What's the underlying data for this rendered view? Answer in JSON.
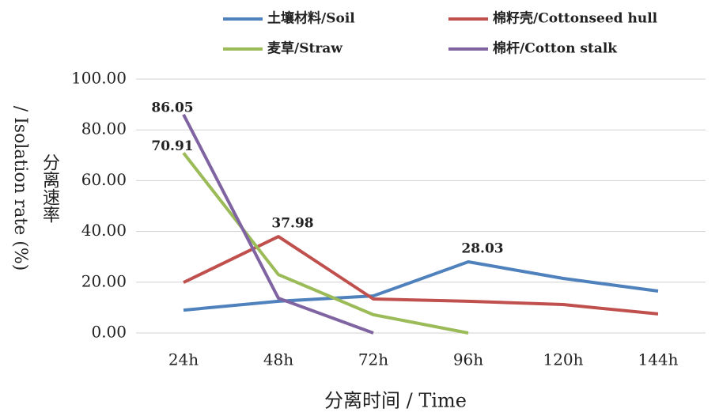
{
  "chart_data": {
    "type": "line",
    "ylabel": [
      "分离速率",
      "/ Isolation rate (%)"
    ],
    "xlabel": "分离时间 / Time",
    "categories": [
      "24h",
      "48h",
      "72h",
      "96h",
      "120h",
      "144h"
    ],
    "ylim": [
      0,
      100
    ],
    "yticks": [
      {
        "value": 0,
        "label": "0.00"
      },
      {
        "value": 20,
        "label": "20.00"
      },
      {
        "value": 40,
        "label": "40.00"
      },
      {
        "value": 60,
        "label": "60.00"
      },
      {
        "value": 80,
        "label": "80.00"
      },
      {
        "value": 100,
        "label": "100.00"
      }
    ],
    "grid": true,
    "series": [
      {
        "name": "土壤材料/Soil",
        "color": "#4f81bd",
        "values": [
          9.0,
          12.5,
          14.6,
          28.03,
          21.5,
          16.5
        ],
        "value_labels": [
          null,
          null,
          null,
          "28.03",
          null,
          null
        ]
      },
      {
        "name": "棉籽壳/Cottonseed hull",
        "color": "#c0504d",
        "values": [
          19.9,
          37.98,
          13.4,
          12.5,
          11.2,
          7.5
        ],
        "value_labels": [
          null,
          "37.98",
          null,
          null,
          null,
          null
        ]
      },
      {
        "name": "麦草/Straw",
        "color": "#9bbb59",
        "values": [
          70.91,
          23.0,
          7.2,
          0,
          null,
          null
        ],
        "value_labels": [
          "70.91",
          null,
          null,
          null,
          null,
          null
        ]
      },
      {
        "name": "棉杆/Cotton stalk",
        "color": "#8064a2",
        "values": [
          86.05,
          13.7,
          0,
          null,
          null,
          null
        ],
        "value_labels": [
          "86.05",
          null,
          null,
          null,
          null,
          null
        ]
      }
    ]
  }
}
